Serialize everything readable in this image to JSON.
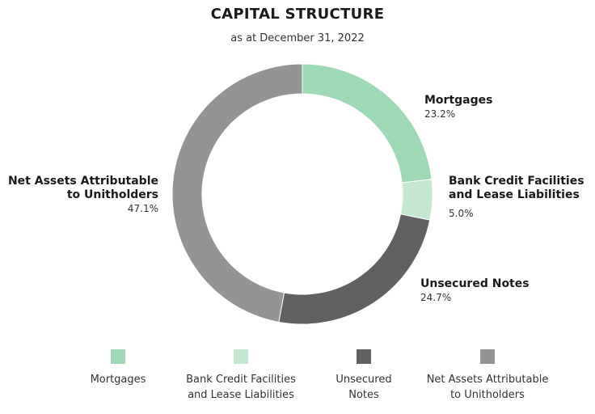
{
  "chart_data": {
    "type": "pie",
    "title": "CAPITAL STRUCTURE",
    "subtitle": "as at December 31, 2022",
    "categories": [
      "Mortgages",
      "Bank Credit Facilities and Lease Liabilities",
      "Unsecured Notes",
      "Net Assets Attributable to Unitholders"
    ],
    "values": [
      23.2,
      5.0,
      24.7,
      47.1
    ],
    "value_labels": [
      "23.2%",
      "5.0%",
      "24.7%",
      "47.1%"
    ],
    "colors": [
      "#9ed9b5",
      "#c4e7d1",
      "#616163",
      "#929496"
    ],
    "donut": true,
    "slice_labels": [
      {
        "name": "Mortgages",
        "pct": "23.2%"
      },
      {
        "name": "Bank Credit Facilities\nand Lease Liabilities",
        "pct": "5.0%"
      },
      {
        "name": "Unsecured Notes",
        "pct": "24.7%"
      },
      {
        "name": "Net Assets Attributable\nto Unitholders",
        "pct": "47.1%"
      }
    ],
    "legend": [
      {
        "label": "Mortgages"
      },
      {
        "label": "Bank Credit Facilities\nand Lease Liabilities"
      },
      {
        "label": "Unsecured\nNotes"
      },
      {
        "label": "Net Assets Attributable\nto Unitholders"
      }
    ],
    "legend_position": "bottom"
  }
}
